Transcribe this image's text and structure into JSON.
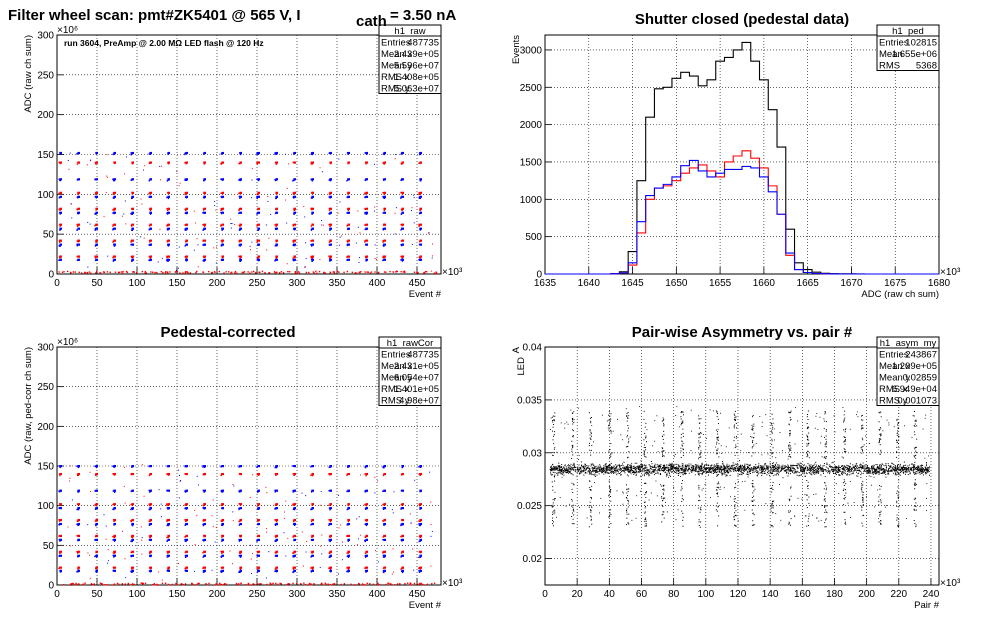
{
  "chart_data": [
    {
      "type": "scatter",
      "title": "Filter wheel scan: pmt#ZK5401 @   565 V, I",
      "title_sub": "cath",
      "title_tail": "= 3.50 nA",
      "annotation": "run 3604, PreAmp @ 2.00 MΩ   LED flash @  120 Hz",
      "xlabel": "Event #",
      "ylabel": "ADC (raw ch sum)",
      "x_exponent": "×10³",
      "y_exponent": "×10⁶",
      "xlim": [
        0,
        480
      ],
      "ylim": [
        0,
        300
      ],
      "xticks": [
        "0",
        "50",
        "100",
        "150",
        "200",
        "250",
        "300",
        "350",
        "400",
        "450"
      ],
      "yticks": [
        "0",
        "50",
        "100",
        "150",
        "200",
        "250",
        "300"
      ],
      "grid": true,
      "levels": [
        152,
        140,
        119,
        102,
        97,
        82,
        77,
        62,
        57,
        42,
        37,
        22,
        18,
        3
      ],
      "period": 22.5,
      "stats": {
        "name": "h1_raw",
        "rows": [
          {
            "k": "Entries",
            "v": "487735"
          },
          {
            "k": "Mean x",
            "v": "2.439e+05"
          },
          {
            "k": "Mean y",
            "v": "5.596e+07"
          },
          {
            "k": "RMS x",
            "v": "1.408e+05"
          },
          {
            "k": "RMS y",
            "v": "5.063e+07"
          }
        ]
      }
    },
    {
      "type": "line",
      "title": "Shutter closed (pedestal data)",
      "xlabel": "ADC (raw ch sum)",
      "ylabel": "Events",
      "x_exponent": "×10³",
      "xlim": [
        1635,
        1680
      ],
      "ylim": [
        0,
        3200
      ],
      "xticks": [
        "1635",
        "1640",
        "1645",
        "1650",
        "1655",
        "1660",
        "1665",
        "1670",
        "1675",
        "1680"
      ],
      "yticks": [
        "0",
        "500",
        "1000",
        "1500",
        "2000",
        "2500",
        "3000"
      ],
      "grid": true,
      "x": [
        1643,
        1644,
        1645,
        1646,
        1647,
        1648,
        1649,
        1650,
        1651,
        1652,
        1653,
        1654,
        1655,
        1656,
        1657,
        1658,
        1659,
        1660,
        1661,
        1662,
        1663,
        1664,
        1665,
        1666,
        1667,
        1668,
        1669,
        1670,
        1671,
        1672
      ],
      "series": [
        {
          "color": "#000000",
          "values": [
            5,
            30,
            300,
            1250,
            2100,
            2480,
            2500,
            2620,
            2700,
            2650,
            2520,
            2600,
            2850,
            2900,
            3000,
            3100,
            2850,
            2600,
            2200,
            1700,
            600,
            150,
            60,
            25,
            10,
            5,
            3,
            2,
            1,
            0
          ]
        },
        {
          "color": "#ff0000",
          "values": [
            2,
            15,
            120,
            550,
            1000,
            1150,
            1180,
            1250,
            1350,
            1420,
            1460,
            1380,
            1300,
            1500,
            1580,
            1650,
            1550,
            1420,
            1180,
            800,
            250,
            60,
            20,
            8,
            3,
            1,
            0,
            0,
            0,
            0
          ]
        },
        {
          "color": "#0000ff",
          "values": [
            2,
            15,
            150,
            700,
            1050,
            1150,
            1200,
            1300,
            1450,
            1520,
            1380,
            1300,
            1350,
            1400,
            1400,
            1440,
            1420,
            1300,
            1100,
            800,
            280,
            60,
            20,
            8,
            3,
            1,
            0,
            0,
            0,
            0
          ]
        }
      ],
      "stats": {
        "name": "h1_ped",
        "rows": [
          {
            "k": "Entries",
            "v": "102815"
          },
          {
            "k": "Mean",
            "v": "1.655e+06"
          },
          {
            "k": "RMS",
            "v": "5368"
          }
        ]
      }
    },
    {
      "type": "scatter",
      "title": "Pedestal-corrected",
      "xlabel": "Event #",
      "ylabel": "ADC (raw, ped-corr ch sum)",
      "x_exponent": "×10³",
      "y_exponent": "×10⁶",
      "xlim": [
        0,
        480
      ],
      "ylim": [
        0,
        300
      ],
      "xticks": [
        "0",
        "50",
        "100",
        "150",
        "200",
        "250",
        "300",
        "350",
        "400",
        "450"
      ],
      "yticks": [
        "0",
        "50",
        "100",
        "150",
        "200",
        "250",
        "300"
      ],
      "grid": true,
      "levels": [
        150,
        140,
        119,
        102,
        97,
        82,
        77,
        62,
        57,
        42,
        37,
        22,
        18,
        2
      ],
      "period": 22.5,
      "stats": {
        "name": "h1_rawCor",
        "rows": [
          {
            "k": "Entries",
            "v": "487735"
          },
          {
            "k": "Mean x",
            "v": "2.431e+05"
          },
          {
            "k": "Mean y",
            "v": "6.054e+07"
          },
          {
            "k": "RMS x",
            "v": "1.401e+05"
          },
          {
            "k": "RMS y",
            "v": "4.98e+07"
          }
        ]
      }
    },
    {
      "type": "scatter",
      "title": "Pair-wise Asymmetry vs. pair #",
      "xlabel": "Pair #",
      "ylabel": "A",
      "ylabel_sub": "LED",
      "x_exponent": "×10³",
      "xlim": [
        0,
        245
      ],
      "ylim": [
        0.0175,
        0.04
      ],
      "xticks": [
        "0",
        "20",
        "40",
        "60",
        "80",
        "100",
        "120",
        "140",
        "160",
        "180",
        "200",
        "220",
        "240"
      ],
      "yticks": [
        "0.02",
        "0.025",
        "0.03",
        "0.035",
        "0.04"
      ],
      "grid": true,
      "band": [
        0.0275,
        0.0295
      ],
      "spikes": [
        5,
        17,
        28,
        40,
        51,
        62,
        73,
        85,
        96,
        107,
        118,
        129,
        141,
        152,
        163,
        174,
        186,
        197,
        208,
        219,
        230
      ],
      "stats": {
        "name": "h1_asym_my",
        "rows": [
          {
            "k": "Entries",
            "v": "243867"
          },
          {
            "k": "Mean x",
            "v": "1.209e+05"
          },
          {
            "k": "Mean y",
            "v": "0.02859"
          },
          {
            "k": "RMS x",
            "v": "6.949e+04"
          },
          {
            "k": "RMS y",
            "v": "0.001073"
          }
        ]
      }
    }
  ]
}
